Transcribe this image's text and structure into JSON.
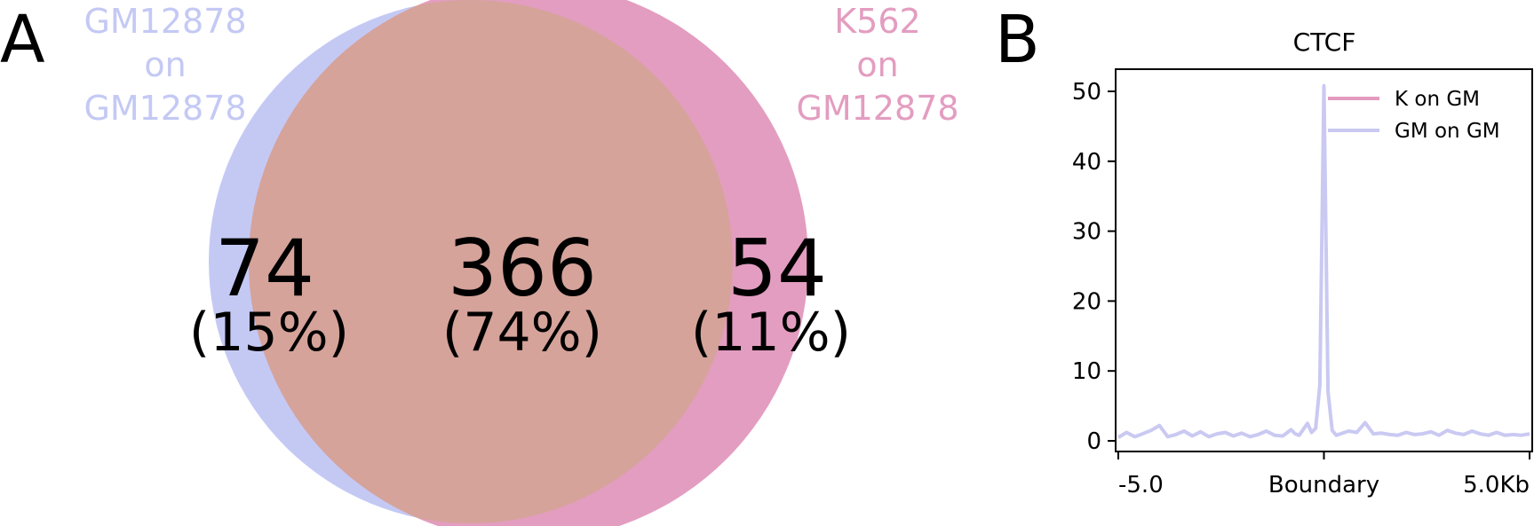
{
  "chart_data": [
    {
      "type": "venn",
      "panel_label": "A",
      "sets": [
        {
          "name_lines": [
            "GM12878",
            "on",
            "GM12878"
          ],
          "color": "#c4c9f4"
        },
        {
          "name_lines": [
            "K562",
            "on",
            "GM12878"
          ],
          "color": "#e39dc0"
        }
      ],
      "intersection_color": "#d5a39a",
      "regions": [
        {
          "region": "left-only",
          "count": "74",
          "percent": "(15%)"
        },
        {
          "region": "overlap",
          "count": "366",
          "percent": "(74%)"
        },
        {
          "region": "right-only",
          "count": "54",
          "percent": "(11%)"
        }
      ]
    },
    {
      "type": "line",
      "panel_label": "B",
      "title": "CTCF",
      "xlabel": "",
      "ylabel": "",
      "xlim": [
        -5.0,
        5.0
      ],
      "ylim": [
        -1.5,
        53
      ],
      "yticks": [
        0,
        10,
        20,
        30,
        40,
        50
      ],
      "xticks": [
        {
          "value": -5.0,
          "label": "-5.0"
        },
        {
          "value": 0,
          "label": "Boundary"
        },
        {
          "value": 5.0,
          "label": "5.0Kb"
        }
      ],
      "legend_position": "top-right",
      "series": [
        {
          "name": "K on GM",
          "color": "#e29bbd",
          "x": [],
          "y": []
        },
        {
          "name": "GM on GM",
          "color": "#c9c9f2",
          "x": [
            -5.0,
            -4.8,
            -4.6,
            -4.5,
            -4.2,
            -4.0,
            -3.8,
            -3.6,
            -3.4,
            -3.2,
            -3.0,
            -2.8,
            -2.6,
            -2.4,
            -2.2,
            -2.0,
            -1.8,
            -1.6,
            -1.4,
            -1.2,
            -1.0,
            -0.8,
            -0.7,
            -0.6,
            -0.4,
            -0.3,
            -0.2,
            -0.1,
            0.0,
            0.1,
            0.2,
            0.3,
            0.4,
            0.6,
            0.8,
            1.0,
            1.2,
            1.4,
            1.6,
            1.8,
            2.0,
            2.2,
            2.4,
            2.6,
            2.8,
            3.0,
            3.2,
            3.4,
            3.6,
            3.8,
            4.0,
            4.2,
            4.4,
            4.6,
            4.8,
            5.0
          ],
          "y": [
            0.5,
            1.2,
            0.6,
            0.8,
            1.5,
            2.2,
            0.6,
            0.9,
            1.4,
            0.7,
            1.3,
            0.6,
            1.0,
            1.2,
            0.7,
            1.1,
            0.6,
            0.9,
            1.4,
            0.8,
            0.7,
            1.6,
            1.0,
            0.8,
            2.5,
            1.2,
            1.8,
            8.0,
            50.8,
            7.0,
            1.5,
            0.8,
            1.0,
            1.4,
            1.2,
            2.6,
            1.0,
            1.1,
            0.9,
            0.8,
            1.2,
            0.9,
            1.0,
            1.3,
            0.8,
            1.5,
            1.1,
            0.9,
            1.4,
            1.0,
            0.8,
            1.2,
            0.8,
            0.9,
            0.8,
            1.0
          ]
        }
      ]
    }
  ]
}
